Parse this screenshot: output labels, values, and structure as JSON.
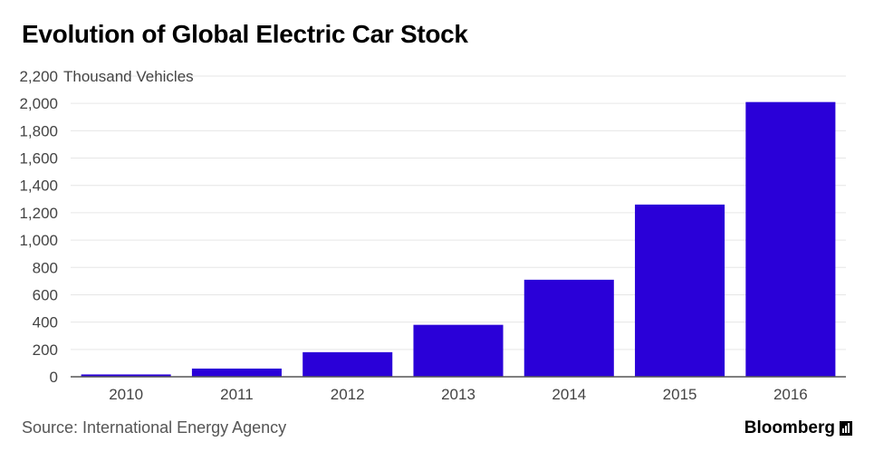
{
  "title": "Evolution of Global Electric Car Stock",
  "source": "Source: International Energy Agency",
  "brand": "Bloomberg",
  "colors": {
    "bar": "#2a00d8",
    "grid": "#e6e6e6",
    "axis": "#555555",
    "tick_text": "#444444"
  },
  "chart_data": {
    "type": "bar",
    "title": "Evolution of Global Electric Car Stock",
    "unit_label": "Thousand Vehicles",
    "categories": [
      "2010",
      "2011",
      "2012",
      "2013",
      "2014",
      "2015",
      "2016"
    ],
    "values": [
      17,
      60,
      180,
      380,
      710,
      1260,
      2010
    ],
    "ylim": [
      0,
      2200
    ],
    "yticks": [
      0,
      200,
      400,
      600,
      800,
      1000,
      1200,
      1400,
      1600,
      1800,
      2000,
      2200
    ],
    "ytick_labels": [
      "0",
      "200",
      "400",
      "600",
      "800",
      "1,000",
      "1,200",
      "1,400",
      "1,600",
      "1,800",
      "2,000",
      "2,200"
    ],
    "grid": true,
    "legend": "none"
  }
}
